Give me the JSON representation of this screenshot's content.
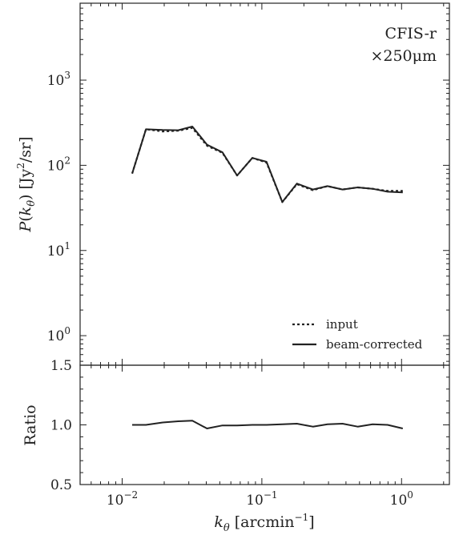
{
  "chart_data": [
    {
      "type": "line",
      "panel": "power-spectrum",
      "xscale": "log",
      "yscale": "log",
      "xlim": [
        0.005,
        2.2
      ],
      "ylim": [
        0.45,
        8000
      ],
      "ylabel": "P(k_θ) [Jy²/sr]",
      "y_ticks": [
        {
          "value": 1,
          "base": "10",
          "exp": "0"
        },
        {
          "value": 10,
          "base": "10",
          "exp": "1"
        },
        {
          "value": 100,
          "base": "10",
          "exp": "2"
        },
        {
          "value": 1000,
          "base": "10",
          "exp": "3"
        }
      ],
      "annotation": [
        "CFIS-r",
        "×250μm"
      ],
      "legend_position": "lower-right",
      "series": [
        {
          "name": "input",
          "style": "dotted",
          "x": [
            0.0118,
            0.0148,
            0.0195,
            0.0252,
            0.0318,
            0.0405,
            0.0522,
            0.0665,
            0.0855,
            0.108,
            0.14,
            0.178,
            0.232,
            0.295,
            0.378,
            0.485,
            0.62,
            0.795,
            1.02
          ],
          "y": [
            80,
            265,
            250,
            255,
            275,
            170,
            140,
            76,
            122,
            108,
            37,
            60,
            51,
            57,
            52,
            55,
            53,
            50,
            50
          ]
        },
        {
          "name": "beam-corrected",
          "style": "solid",
          "x": [
            0.0118,
            0.0148,
            0.0195,
            0.0252,
            0.0318,
            0.0405,
            0.0522,
            0.0665,
            0.0855,
            0.108,
            0.14,
            0.178,
            0.232,
            0.295,
            0.378,
            0.485,
            0.62,
            0.795,
            1.02
          ],
          "y": [
            80,
            265,
            260,
            258,
            285,
            175,
            142,
            76,
            122,
            110,
            37,
            61,
            52,
            57,
            52,
            55,
            53,
            49,
            48
          ]
        }
      ]
    },
    {
      "type": "line",
      "panel": "ratio",
      "xscale": "log",
      "xlim": [
        0.005,
        2.2
      ],
      "ylim": [
        0.5,
        1.5
      ],
      "ylabel": "Ratio",
      "xlabel": "k_θ [arcmin⁻¹]",
      "y_ticks": [
        {
          "value": 0.5,
          "label": "0.5"
        },
        {
          "value": 1.0,
          "label": "1.0"
        },
        {
          "value": 1.5,
          "label": "1.5"
        }
      ],
      "x_ticks": [
        {
          "value": 0.01,
          "base": "10",
          "exp": "−2"
        },
        {
          "value": 0.1,
          "base": "10",
          "exp": "−1"
        },
        {
          "value": 1,
          "base": "10",
          "exp": "0"
        }
      ],
      "series": [
        {
          "name": "ratio",
          "style": "solid",
          "x": [
            0.0118,
            0.0148,
            0.0195,
            0.0252,
            0.0318,
            0.0405,
            0.0522,
            0.0665,
            0.0855,
            0.108,
            0.14,
            0.178,
            0.232,
            0.295,
            0.378,
            0.485,
            0.62,
            0.795,
            1.02
          ],
          "y": [
            1.0,
            1.0,
            1.02,
            1.03,
            1.035,
            0.97,
            0.995,
            0.995,
            1.0,
            1.0,
            1.005,
            1.01,
            0.985,
            1.005,
            1.01,
            0.985,
            1.005,
            1.0,
            0.97
          ]
        }
      ]
    }
  ]
}
